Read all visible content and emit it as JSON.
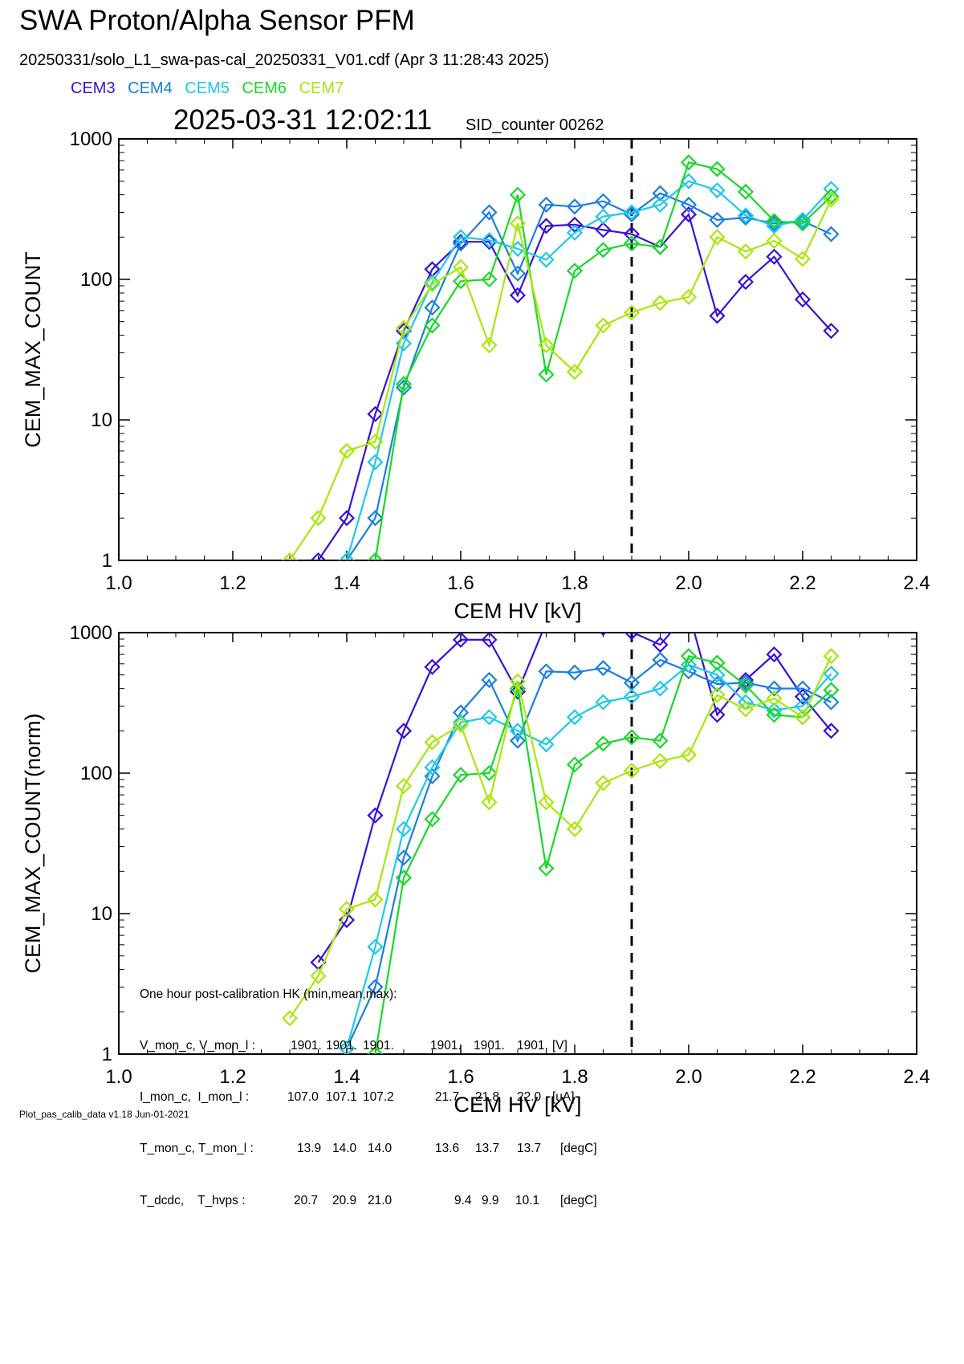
{
  "header": {
    "title": "SWA Proton/Alpha Sensor PFM",
    "file_line": "20250331/solo_L1_swa-pas-cal_20250331_V01.cdf  (Apr  3 11:28:43 2025)",
    "timestamp": "2025-03-31 12:02:11",
    "sid_counter": "SID_counter 00262"
  },
  "legend": [
    {
      "name": "CEM3",
      "color": "#3a10d8"
    },
    {
      "name": "CEM4",
      "color": "#1a7fe0"
    },
    {
      "name": "CEM5",
      "color": "#1ec8ec"
    },
    {
      "name": "CEM6",
      "color": "#19d82a"
    },
    {
      "name": "CEM7",
      "color": "#a8e80a"
    }
  ],
  "hk": {
    "heading": "One hour post-calibration HK (min,mean,max):",
    "rows": [
      {
        "label": "V_mon_c, V_mon_l :",
        "c": [
          "1901.",
          "1901.",
          "1901."
        ],
        "l": [
          "1901.",
          "1901.",
          "1901."
        ],
        "unit": "[V]"
      },
      {
        "label": "I_mon_c,  I_mon_l :",
        "c": [
          "107.0",
          "107.1",
          "107.2"
        ],
        "l": [
          "21.7",
          "21.8",
          "22.0"
        ],
        "unit": "[uA]"
      },
      {
        "label": "T_mon_c, T_mon_l :",
        "c": [
          "13.9",
          "14.0",
          "14.0"
        ],
        "l": [
          "13.6",
          "13.7",
          "13.7"
        ],
        "unit": "[degC]"
      },
      {
        "label": "T_dcdc,    T_hvps :",
        "c": [
          "20.7",
          "20.9",
          "21.0"
        ],
        "l": [
          "9.4",
          "9.9",
          "10.1"
        ],
        "unit": "[degC]"
      }
    ]
  },
  "footer": "Plot_pas_calib_data v1.18 Jun-01-2021",
  "chart_data": [
    {
      "type": "line",
      "xlabel": "CEM HV [kV]",
      "ylabel": "CEM_MAX_COUNT",
      "xlim": [
        1.0,
        2.4
      ],
      "ylim": [
        1,
        1000
      ],
      "yscale": "log",
      "xticks": [
        "1.0",
        "1.2",
        "1.4",
        "1.6",
        "1.8",
        "2.0",
        "2.2",
        "2.4"
      ],
      "yticks": [
        "1",
        "10",
        "100",
        "1000"
      ],
      "vline_x": 1.9,
      "marker": "diamond",
      "x": [
        1.3,
        1.35,
        1.4,
        1.45,
        1.5,
        1.55,
        1.6,
        1.65,
        1.7,
        1.75,
        1.8,
        1.85,
        1.9,
        1.95,
        2.0,
        2.05,
        2.1,
        2.15,
        2.2,
        2.25
      ],
      "series": [
        {
          "name": "CEM3",
          "color": "#3a10d8",
          "values": [
            null,
            1,
            2,
            11,
            43,
            118,
            185,
            185,
            77,
            240,
            245,
            225,
            210,
            170,
            290,
            55,
            96,
            145,
            72,
            43
          ]
        },
        {
          "name": "CEM4",
          "color": "#1a7fe0",
          "values": [
            null,
            null,
            1,
            2,
            17,
            63,
            180,
            300,
            110,
            340,
            330,
            360,
            290,
            410,
            340,
            265,
            275,
            250,
            260,
            210
          ]
        },
        {
          "name": "CEM5",
          "color": "#1ec8ec",
          "values": [
            null,
            null,
            1,
            5,
            35,
            95,
            200,
            190,
            165,
            138,
            215,
            280,
            300,
            340,
            500,
            430,
            285,
            240,
            265,
            440
          ]
        },
        {
          "name": "CEM6",
          "color": "#19d82a",
          "values": [
            null,
            null,
            null,
            1,
            18,
            47,
            97,
            100,
            400,
            21,
            115,
            162,
            180,
            170,
            680,
            610,
            420,
            260,
            250,
            390
          ]
        },
        {
          "name": "CEM7",
          "color": "#a8e80a",
          "values": [
            1,
            2,
            6,
            7,
            45,
            92,
            122,
            34,
            250,
            34,
            22,
            47,
            58,
            68,
            75,
            200,
            158,
            188,
            140,
            370
          ]
        }
      ]
    },
    {
      "type": "line",
      "xlabel": "CEM HV [kV]",
      "ylabel": "CEM_MAX_COUNT(norm)",
      "xlim": [
        1.0,
        2.4
      ],
      "ylim": [
        1,
        1000
      ],
      "yscale": "log",
      "xticks": [
        "1.0",
        "1.2",
        "1.4",
        "1.6",
        "1.8",
        "2.0",
        "2.2",
        "2.4"
      ],
      "yticks": [
        "1",
        "10",
        "100",
        "1000"
      ],
      "vline_x": 1.9,
      "marker": "diamond",
      "x": [
        1.3,
        1.35,
        1.4,
        1.45,
        1.5,
        1.55,
        1.6,
        1.65,
        1.7,
        1.75,
        1.8,
        1.85,
        1.9,
        1.95,
        2.0,
        2.05,
        2.1,
        2.15,
        2.2,
        2.25
      ],
      "series": [
        {
          "name": "CEM3",
          "color": "#3a10d8",
          "values": [
            null,
            4.5,
            9,
            50,
            200,
            570,
            890,
            890,
            380,
            1180,
            1180,
            1080,
            1010,
            820,
            1400,
            260,
            460,
            700,
            350,
            200
          ]
        },
        {
          "name": "CEM4",
          "color": "#1a7fe0",
          "values": [
            null,
            null,
            1.1,
            3,
            25,
            95,
            270,
            460,
            170,
            530,
            520,
            560,
            440,
            640,
            530,
            430,
            440,
            400,
            400,
            320
          ]
        },
        {
          "name": "CEM5",
          "color": "#1ec8ec",
          "values": [
            null,
            null,
            1.1,
            5.8,
            40,
            110,
            230,
            250,
            200,
            160,
            250,
            320,
            350,
            400,
            590,
            500,
            320,
            280,
            300,
            510
          ]
        },
        {
          "name": "CEM6",
          "color": "#19d82a",
          "values": [
            null,
            null,
            null,
            1,
            18,
            47,
            97,
            100,
            400,
            21,
            115,
            162,
            180,
            170,
            680,
            610,
            420,
            260,
            250,
            390
          ]
        },
        {
          "name": "CEM7",
          "color": "#a8e80a",
          "values": [
            1.8,
            3.6,
            10.8,
            12.6,
            81,
            166,
            220,
            62,
            450,
            62,
            40,
            85,
            104,
            122,
            135,
            360,
            285,
            340,
            250,
            680
          ]
        }
      ]
    }
  ]
}
